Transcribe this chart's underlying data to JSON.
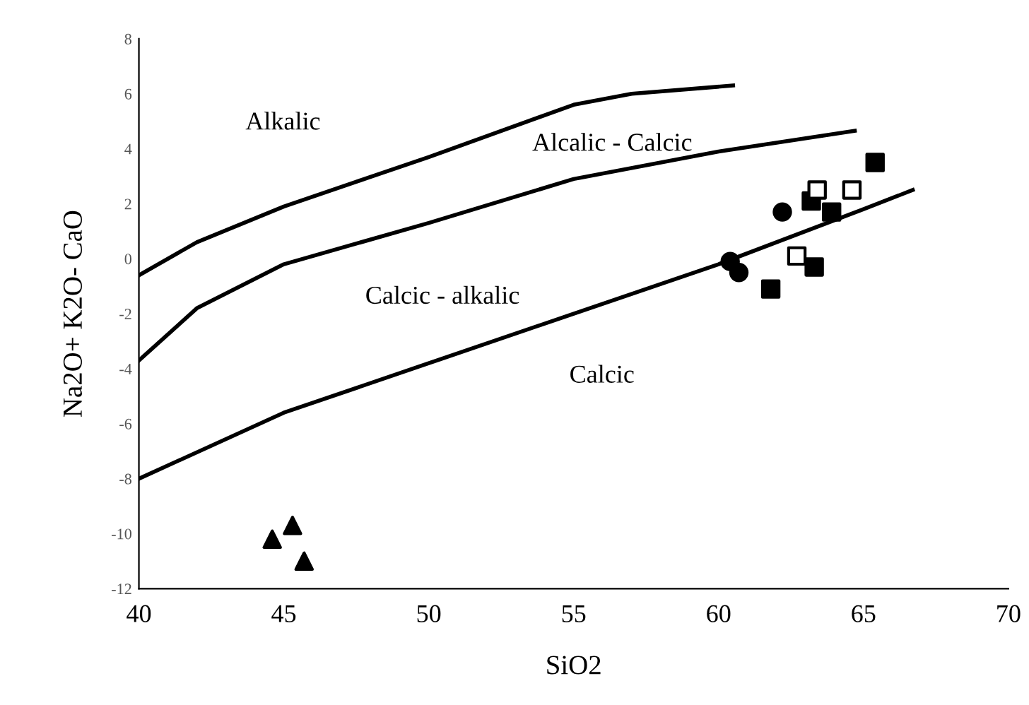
{
  "chart_data": {
    "type": "scatter",
    "xlabel": "SiO2",
    "ylabel": "Na2O+ K2O- CaO",
    "xlim": [
      40,
      70
    ],
    "ylim": [
      -12,
      8
    ],
    "xticks": [
      40,
      45,
      50,
      55,
      60,
      65,
      70
    ],
    "yticks": [
      -12,
      -10,
      -8,
      -6,
      -4,
      -2,
      0,
      2,
      4,
      6,
      8
    ],
    "grid": false,
    "legend": false,
    "series": [
      {
        "type": "line",
        "color": "#000000",
        "marker": "none",
        "x": [
          40,
          42,
          45,
          50,
          55,
          57,
          60.5
        ],
        "values": [
          -0.6,
          0.6,
          1.9,
          3.7,
          5.6,
          6.0,
          6.3
        ]
      },
      {
        "type": "line",
        "color": "#000000",
        "marker": "none",
        "x": [
          40,
          42,
          45,
          50,
          55,
          60,
          64.7
        ],
        "values": [
          -3.7,
          -1.8,
          -0.2,
          1.3,
          2.9,
          3.9,
          4.65
        ]
      },
      {
        "type": "line",
        "color": "#000000",
        "marker": "none",
        "x": [
          40,
          45,
          50,
          55,
          60,
          65,
          66.7
        ],
        "values": [
          -8,
          -5.6,
          -3.8,
          -2.0,
          -0.2,
          1.8,
          2.5
        ]
      },
      {
        "color": "#000000",
        "marker": "triangle",
        "x": [
          44.6,
          45.3,
          45.7
        ],
        "values": [
          -10.2,
          -9.7,
          -11.0
        ]
      },
      {
        "color": "#000000",
        "marker": "circle",
        "x": [
          60.4,
          60.7,
          62.2
        ],
        "values": [
          -0.1,
          -0.5,
          1.7
        ]
      },
      {
        "color": "#000000",
        "marker": "square",
        "x": [
          61.8,
          63.3,
          63.2,
          63.9,
          65.4
        ],
        "values": [
          -1.1,
          -0.3,
          2.1,
          1.7,
          3.5
        ]
      },
      {
        "color": "#ffffff",
        "marker": "square",
        "x": [
          62.7,
          63.4,
          64.6
        ],
        "values": [
          0.1,
          2.5,
          2.5
        ]
      }
    ],
    "annotations": [
      "Alkalic",
      "Alcalic - Calcic",
      "Calcic - alkalic",
      "Calcic"
    ]
  }
}
